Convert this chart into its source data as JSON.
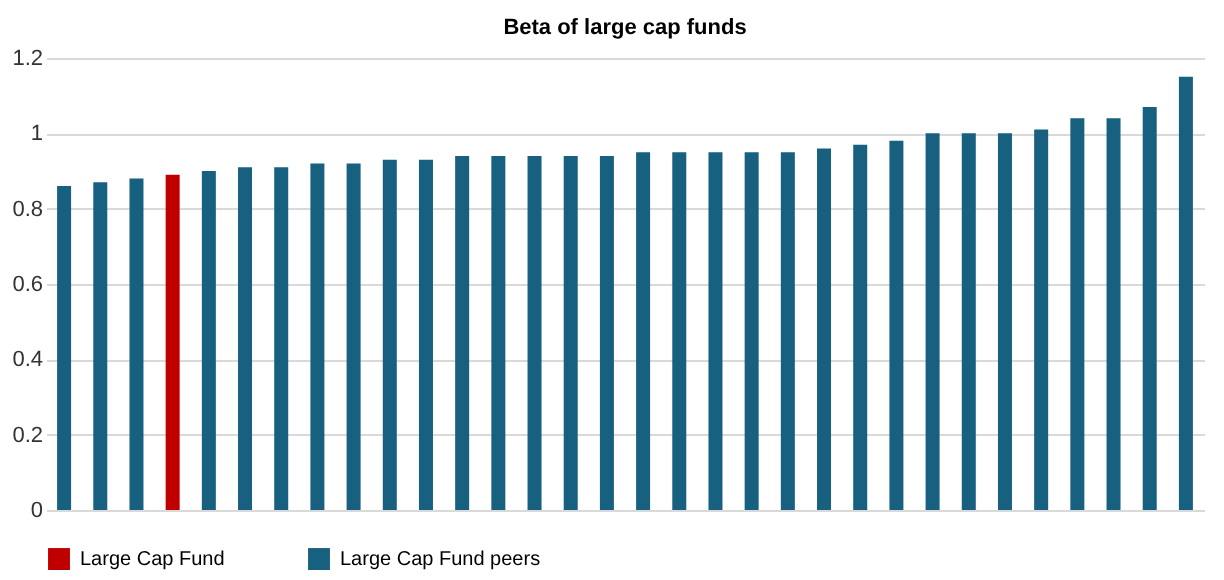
{
  "chart_data": {
    "type": "bar",
    "title": "Beta of large cap funds",
    "categories": [
      null,
      null,
      null,
      null,
      null,
      null,
      null,
      null,
      null,
      null,
      null,
      null,
      null,
      null,
      null,
      null,
      null,
      null,
      null,
      null,
      null,
      null,
      null,
      null,
      null,
      null,
      null,
      null,
      null,
      null,
      null,
      null
    ],
    "series": [
      {
        "name": "Large Cap Fund",
        "color": "#c00000",
        "values": [
          null,
          null,
          null,
          0.89,
          null,
          null,
          null,
          null,
          null,
          null,
          null,
          null,
          null,
          null,
          null,
          null,
          null,
          null,
          null,
          null,
          null,
          null,
          null,
          null,
          null,
          null,
          null,
          null,
          null,
          null,
          null,
          null
        ]
      },
      {
        "name": "Large Cap Fund peers",
        "color": "#17607f",
        "values": [
          0.86,
          0.87,
          0.88,
          null,
          0.9,
          0.91,
          0.91,
          0.92,
          0.92,
          0.93,
          0.93,
          0.94,
          0.94,
          0.94,
          0.94,
          0.94,
          0.95,
          0.95,
          0.95,
          0.95,
          0.95,
          0.96,
          0.97,
          0.98,
          1.0,
          1.0,
          1.0,
          1.01,
          1.04,
          1.04,
          1.07,
          1.15
        ]
      }
    ],
    "ylim": [
      0,
      1.2
    ],
    "yticks": [
      0,
      0.2,
      0.4,
      0.6,
      0.8,
      1,
      1.2
    ],
    "grid": "y",
    "legend": "bottom",
    "tick_labels": "y"
  }
}
